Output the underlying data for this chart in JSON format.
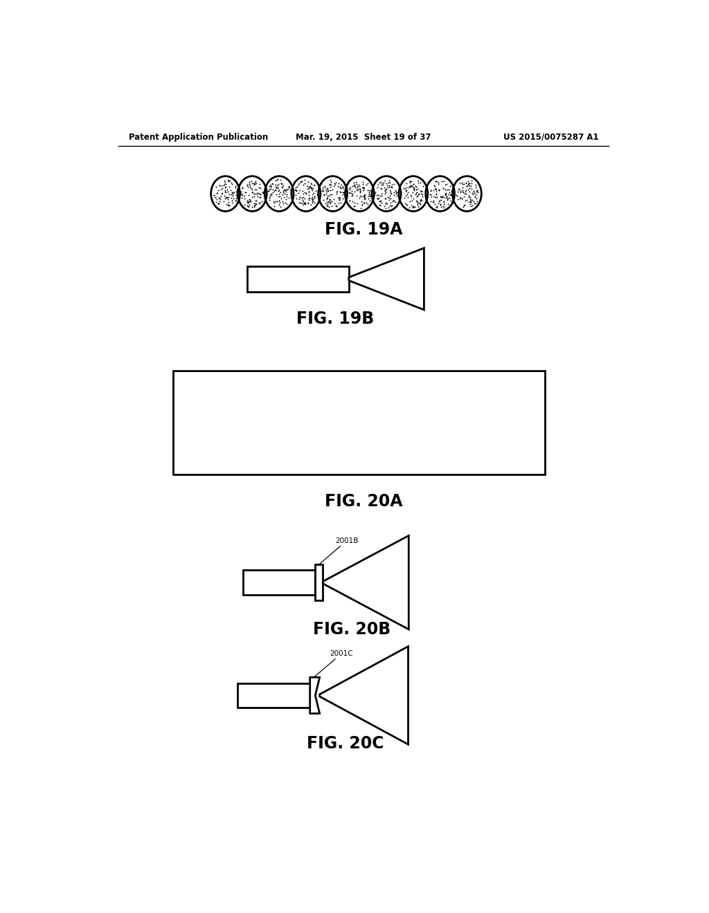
{
  "bg_color": "#ffffff",
  "header_left": "Patent Application Publication",
  "header_center": "Mar. 19, 2015  Sheet 19 of 37",
  "header_right": "US 2015/0075287 A1",
  "fig19a_label": "FIG. 19A",
  "fig19b_label": "FIG. 19B",
  "fig20a_label": "FIG. 20A",
  "fig20b_label": "FIG. 20B",
  "fig20c_label": "FIG. 20C",
  "label_2001b": "2001B",
  "label_2001c": "2001C",
  "line_color": "#000000",
  "lw": 2.0
}
